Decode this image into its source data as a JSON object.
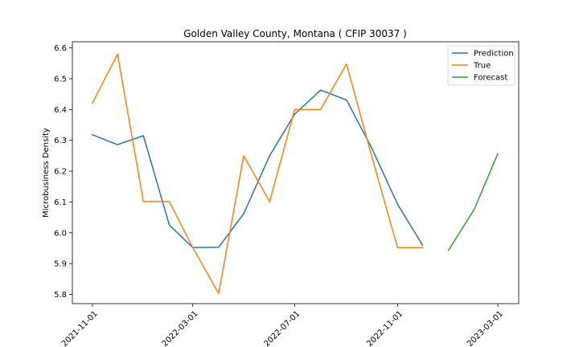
{
  "chart_data": {
    "type": "line",
    "title": "Golden Valley County, Montana ( CFIP 30037 )",
    "xlabel": "",
    "ylabel": "Microbusiness Density",
    "ylim": [
      5.77,
      6.62
    ],
    "xlim": [
      "2021-10-08",
      "2023-03-26"
    ],
    "yticks": [
      5.8,
      5.9,
      6.0,
      6.1,
      6.2,
      6.3,
      6.4,
      6.5,
      6.6
    ],
    "ytick_labels": [
      "5.8",
      "5.9",
      "6.0",
      "6.1",
      "6.2",
      "6.3",
      "6.4",
      "6.5",
      "6.6"
    ],
    "xticks": [
      "2021-11-01",
      "2022-03-01",
      "2022-07-01",
      "2022-11-01",
      "2023-03-01"
    ],
    "xtick_labels": [
      "2021-11-01",
      "2022-03-01",
      "2022-07-01",
      "2022-11-01",
      "2023-03-01"
    ],
    "legend_position": "top-right",
    "series": [
      {
        "name": "Prediction",
        "color": "#1f77b4",
        "x": [
          "2021-11-01",
          "2021-12-01",
          "2022-01-01",
          "2022-02-01",
          "2022-03-01",
          "2022-04-01",
          "2022-05-01",
          "2022-06-01",
          "2022-07-01",
          "2022-08-01",
          "2022-09-01",
          "2022-10-01",
          "2022-11-01",
          "2022-12-01"
        ],
        "y": [
          6.318,
          6.286,
          6.315,
          6.025,
          5.952,
          5.953,
          6.062,
          6.25,
          6.385,
          6.463,
          6.431,
          6.276,
          6.093,
          5.96
        ]
      },
      {
        "name": "True",
        "color": "#ff7f0e",
        "x": [
          "2021-11-01",
          "2021-12-01",
          "2022-01-01",
          "2022-02-01",
          "2022-03-01",
          "2022-04-01",
          "2022-05-01",
          "2022-06-01",
          "2022-07-01",
          "2022-08-01",
          "2022-09-01",
          "2022-10-01",
          "2022-11-01",
          "2022-12-01"
        ],
        "y": [
          6.421,
          6.58,
          6.101,
          6.101,
          5.952,
          5.803,
          6.25,
          6.101,
          6.4,
          6.4,
          6.548,
          6.25,
          5.952,
          5.952
        ]
      },
      {
        "name": "Forecast",
        "color": "#2ca02c",
        "x": [
          "2023-01-01",
          "2023-02-01",
          "2023-03-01"
        ],
        "y": [
          5.943,
          6.077,
          6.257
        ]
      }
    ]
  }
}
